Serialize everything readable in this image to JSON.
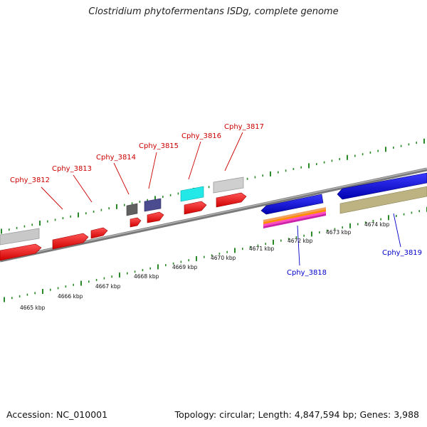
{
  "title": "Clostridium phytofermentans ISDg, complete genome",
  "footer": {
    "accession": "Accession: NC_010001",
    "stats": "Topology: circular; Length: 4,847,594 bp; Genes: 3,988"
  },
  "colors": {
    "forward_label": "#cc0000",
    "reverse_label": "#0000cc",
    "tick": "#2a8a2a",
    "backbone": "#808080"
  },
  "kbp_labels": [
    "4665 kbp",
    "4666 kbp",
    "4667 kbp",
    "4668 kbp",
    "4669 kbp",
    "4670 kbp",
    "4671 kbp",
    "4672 kbp",
    "4673 kbp",
    "4674 kbp"
  ],
  "gene_labels": {
    "cphy_3812": "Cphy_3812",
    "cphy_3813": "Cphy_3813",
    "cphy_3814": "Cphy_3814",
    "cphy_3815": "Cphy_3815",
    "cphy_3816": "Cphy_3816",
    "cphy_3817": "Cphy_3817",
    "cphy_3818": "Cphy_3818",
    "cphy_3819": "Cphy_3819"
  }
}
